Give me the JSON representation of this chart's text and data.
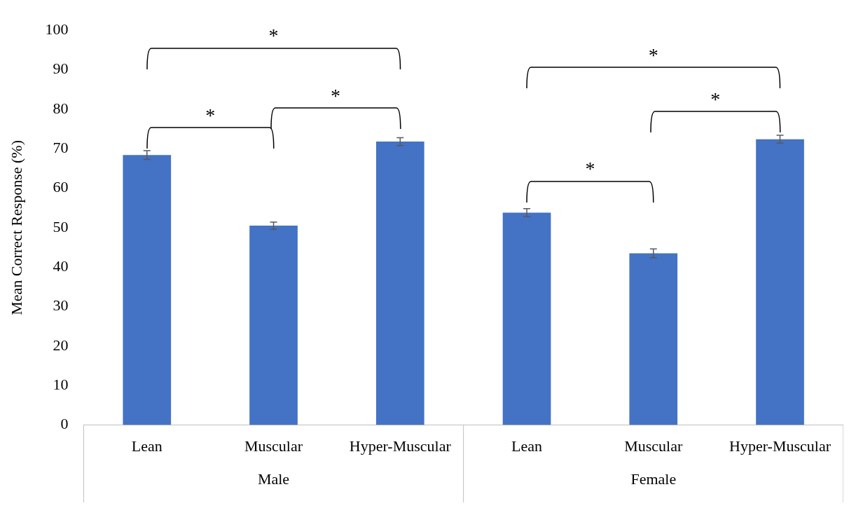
{
  "chart_data": {
    "type": "bar",
    "ylabel": "Mean Correct Response (%)",
    "categories": [
      "Lean",
      "Muscular",
      "Hyper-Muscular",
      "Lean",
      "Muscular",
      "Hyper-Muscular"
    ],
    "values": [
      68.4,
      50.5,
      71.8,
      53.8,
      43.5,
      72.4
    ],
    "errors": [
      1.1,
      0.9,
      1.0,
      1.0,
      1.1,
      1.0
    ],
    "color": "#4472c4",
    "ylim": [
      0,
      100
    ],
    "yticks": [
      0,
      10,
      20,
      30,
      40,
      50,
      60,
      70,
      80,
      90,
      100
    ],
    "grid": false,
    "legend": false,
    "annotations": [
      "*",
      "*",
      "*",
      "*",
      "*",
      "*",
      "Male",
      "Female"
    ]
  }
}
